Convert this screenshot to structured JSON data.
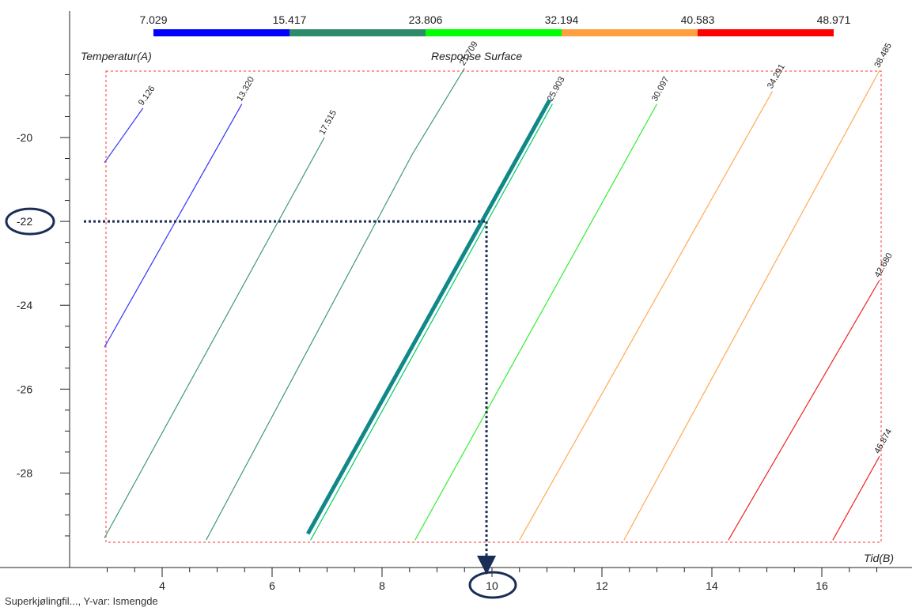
{
  "footer_text": "Superkjølingfil..., Y-var: Ismengde",
  "chart_data": {
    "type": "contour",
    "title": "Response Surface",
    "xlabel": "Tid(B)",
    "ylabel": "Temperatur(A)",
    "xlim": [
      2.9,
      17.05
    ],
    "ylim": [
      -29.6,
      -18.35
    ],
    "x_ticks": [
      4,
      6,
      8,
      10,
      12,
      14,
      16
    ],
    "y_ticks": [
      -20,
      -22,
      -24,
      -26,
      -28
    ],
    "color_scale": {
      "breaks": [
        "7.029",
        "15.417",
        "23.806",
        "32.194",
        "40.583",
        "48.971"
      ],
      "colors": [
        "#0000ff",
        "#2e8b6a",
        "#00ff00",
        "#ffa040",
        "#ff0000"
      ]
    },
    "contours": [
      {
        "label": "9.126",
        "color": "#3333ff",
        "points": [
          [
            2.95,
            -20.6
          ],
          [
            3.65,
            -19.3
          ]
        ]
      },
      {
        "label": "13.320",
        "color": "#3333ff",
        "points": [
          [
            2.95,
            -25.0
          ],
          [
            5.45,
            -19.2
          ]
        ]
      },
      {
        "label": "17.515",
        "color": "#3e9a78",
        "points": [
          [
            2.95,
            -29.55
          ],
          [
            6.95,
            -20.0
          ]
        ]
      },
      {
        "label": "21.709",
        "color": "#3e9a78",
        "points": [
          [
            4.8,
            -29.6
          ],
          [
            8.55,
            -20.4
          ],
          [
            9.5,
            -18.35
          ]
        ]
      },
      {
        "label": "25.903",
        "color": "#00cc66",
        "points": [
          [
            6.7,
            -29.6
          ],
          [
            11.1,
            -19.2
          ]
        ]
      },
      {
        "label": "30.097",
        "color": "#33ee33",
        "points": [
          [
            8.6,
            -29.6
          ],
          [
            13.0,
            -19.2
          ]
        ]
      },
      {
        "label": "34.291",
        "color": "#ffaa55",
        "points": [
          [
            10.5,
            -29.6
          ],
          [
            15.1,
            -18.9
          ]
        ]
      },
      {
        "label": "38.485",
        "color": "#ffaa55",
        "points": [
          [
            12.4,
            -29.6
          ],
          [
            17.05,
            -18.4
          ]
        ]
      },
      {
        "label": "42.680",
        "color": "#ee2222",
        "points": [
          [
            14.3,
            -29.6
          ],
          [
            17.05,
            -23.4
          ]
        ]
      },
      {
        "label": "46.874",
        "color": "#ee2222",
        "points": [
          [
            16.2,
            -29.6
          ],
          [
            17.05,
            -27.6
          ]
        ]
      }
    ],
    "highlight_contour": {
      "color": "#118888",
      "points": [
        [
          6.65,
          -29.45
        ],
        [
          11.05,
          -19.1
        ]
      ]
    },
    "annotation": {
      "type": "crosshair",
      "x": 9.9,
      "y": -22,
      "color": "#1a2e55",
      "circled_tick_labels": [
        "-22",
        "10"
      ]
    },
    "legend_position": "top",
    "grid": false
  }
}
